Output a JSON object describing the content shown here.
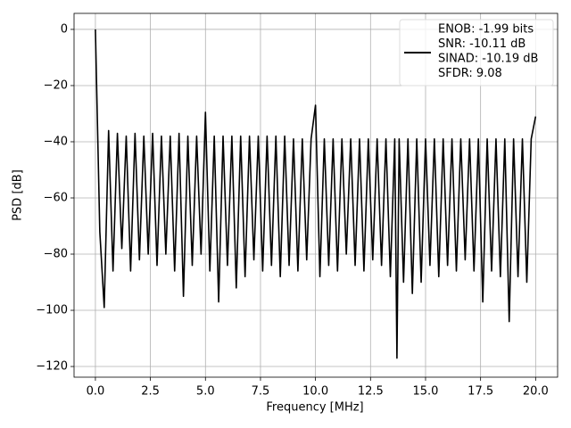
{
  "chart_data": {
    "type": "line",
    "xlabel": "Frequency [MHz]",
    "ylabel": "PSD [dB]",
    "x": [
      0,
      0.2,
      0.4,
      0.6,
      0.8,
      1.0,
      1.2,
      1.4,
      1.6,
      1.8,
      2.0,
      2.2,
      2.4,
      2.6,
      2.8,
      3.0,
      3.2,
      3.4,
      3.6,
      3.8,
      4.0,
      4.2,
      4.4,
      4.6,
      4.8,
      5.0,
      5.2,
      5.4,
      5.6,
      5.8,
      6.0,
      6.2,
      6.4,
      6.6,
      6.8,
      7.0,
      7.2,
      7.4,
      7.6,
      7.8,
      8.0,
      8.2,
      8.4,
      8.6,
      8.8,
      9.0,
      9.2,
      9.4,
      9.6,
      9.8,
      10.0,
      10.2,
      10.4,
      10.6,
      10.8,
      11.0,
      11.2,
      11.4,
      11.6,
      11.8,
      12.0,
      12.2,
      12.4,
      12.6,
      12.8,
      13.0,
      13.2,
      13.4,
      13.6,
      13.7,
      13.8,
      14.0,
      14.2,
      14.4,
      14.6,
      14.8,
      15.0,
      15.2,
      15.4,
      15.6,
      15.8,
      16.0,
      16.2,
      16.4,
      16.6,
      16.8,
      17.0,
      17.2,
      17.4,
      17.6,
      17.8,
      18.0,
      18.2,
      18.4,
      18.6,
      18.8,
      19.0,
      19.2,
      19.4,
      19.6,
      19.8,
      20.0
    ],
    "series": [
      {
        "name": [
          "ENOB: -1.99 bits",
          "SNR: -10.11 dB",
          "SINAD: -10.19 dB",
          "SFDR: 9.08"
        ],
        "color": "#000000",
        "values": [
          0,
          -72,
          -99,
          -36,
          -86,
          -37,
          -78,
          -38,
          -86,
          -37,
          -82,
          -38,
          -80,
          -37,
          -84,
          -38,
          -80,
          -38,
          -86,
          -37,
          -95,
          -38,
          -84,
          -38,
          -80,
          -29.5,
          -86,
          -38,
          -97,
          -38,
          -84,
          -38,
          -92,
          -38,
          -88,
          -38,
          -82,
          -38,
          -86,
          -38,
          -84,
          -38,
          -88,
          -38,
          -84,
          -39,
          -86,
          -39,
          -82,
          -39,
          -27,
          -88,
          -39,
          -84,
          -39,
          -86,
          -39,
          -80,
          -39,
          -84,
          -39,
          -86,
          -39,
          -82,
          -39,
          -84,
          -39,
          -88,
          -39,
          -117,
          -39,
          -90,
          -39,
          -94,
          -39,
          -90,
          -39,
          -84,
          -39,
          -88,
          -39,
          -84,
          -39,
          -86,
          -39,
          -82,
          -39,
          -86,
          -39,
          -97,
          -39,
          -86,
          -39,
          -88,
          -39,
          -104,
          -39,
          -88,
          -39,
          -90,
          -39,
          -31
        ]
      }
    ],
    "xlim": [
      -0.97,
      21.0
    ],
    "ylim": [
      -123.8,
      5.7
    ],
    "xticks": [
      {
        "value": 0,
        "label": "0.0"
      },
      2.5,
      {
        "value": 5,
        "label": "5.0"
      },
      7.5,
      {
        "value": 10,
        "label": "10.0"
      },
      12.5,
      {
        "value": 15,
        "label": "15.0"
      },
      17.5,
      {
        "value": 20,
        "label": "20.0"
      }
    ],
    "yticks": [
      {
        "value": -120,
        "label": "−120"
      },
      {
        "value": -100,
        "label": "−100"
      },
      {
        "value": -80,
        "label": "−80"
      },
      {
        "value": -60,
        "label": "−60"
      },
      {
        "value": -40,
        "label": "−40"
      },
      {
        "value": -20,
        "label": "−20"
      },
      0
    ],
    "grid": true,
    "legend": "upper right"
  }
}
